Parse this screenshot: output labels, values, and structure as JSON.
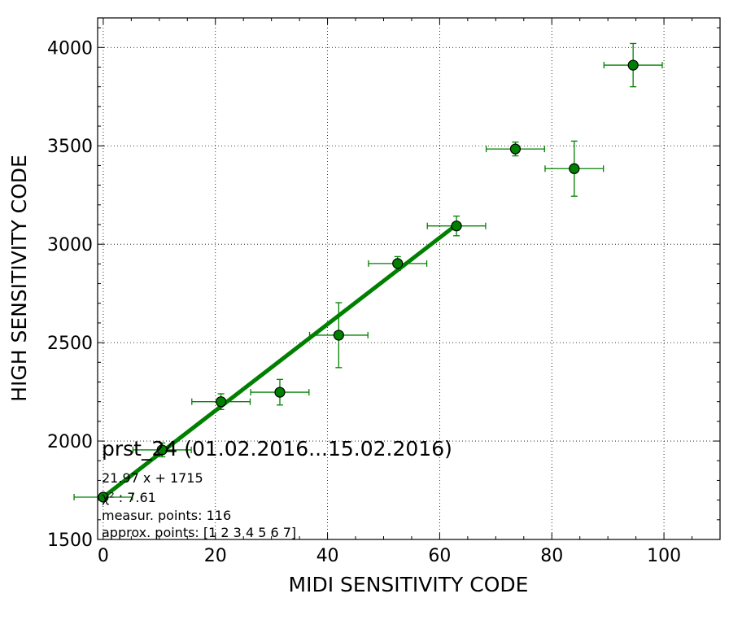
{
  "chart_data": {
    "type": "scatter",
    "xlabel": "MIDI SENSITIVITY CODE",
    "ylabel": "HIGH SENSITIVITY CODE",
    "xlim": [
      -1,
      110
    ],
    "ylim": [
      1500,
      4150
    ],
    "xticks": [
      "0",
      "20",
      "40",
      "60",
      "80",
      "100"
    ],
    "yticks": [
      "1500",
      "2000",
      "2500",
      "3000",
      "3500",
      "4000"
    ],
    "grid": true,
    "colors": {
      "points": "#008000",
      "fit_line": "#008000"
    },
    "points": [
      {
        "x": 0,
        "y": 1715,
        "xerr": 5.2,
        "yerr": 12
      },
      {
        "x": 10.5,
        "y": 1955,
        "xerr": 5.2,
        "yerr": 35
      },
      {
        "x": 21,
        "y": 2200,
        "xerr": 5.2,
        "yerr": 40
      },
      {
        "x": 31.5,
        "y": 2248,
        "xerr": 5.2,
        "yerr": 65
      },
      {
        "x": 42,
        "y": 2538,
        "xerr": 5.2,
        "yerr": 165
      },
      {
        "x": 52.5,
        "y": 2902,
        "xerr": 5.2,
        "yerr": 35
      },
      {
        "x": 63,
        "y": 3093,
        "xerr": 5.2,
        "yerr": 50
      },
      {
        "x": 73.5,
        "y": 3484,
        "xerr": 5.2,
        "yerr": 35
      },
      {
        "x": 84,
        "y": 3384,
        "xerr": 5.2,
        "yerr": 140
      },
      {
        "x": 94.5,
        "y": 3910,
        "xerr": 5.2,
        "yerr": 110
      }
    ],
    "fit": {
      "slope": 21.97,
      "intercept": 1715,
      "x_range": [
        0,
        63
      ]
    },
    "annotations": {
      "title": "prst_24 (01.02.2016...15.02.2016)",
      "equation": "21.97 x + 1715",
      "chi2": "χ² : 7.61",
      "measured": "measur. points: 116",
      "approx": "approx. points: [1 2 3 4 5 6 7]"
    }
  }
}
